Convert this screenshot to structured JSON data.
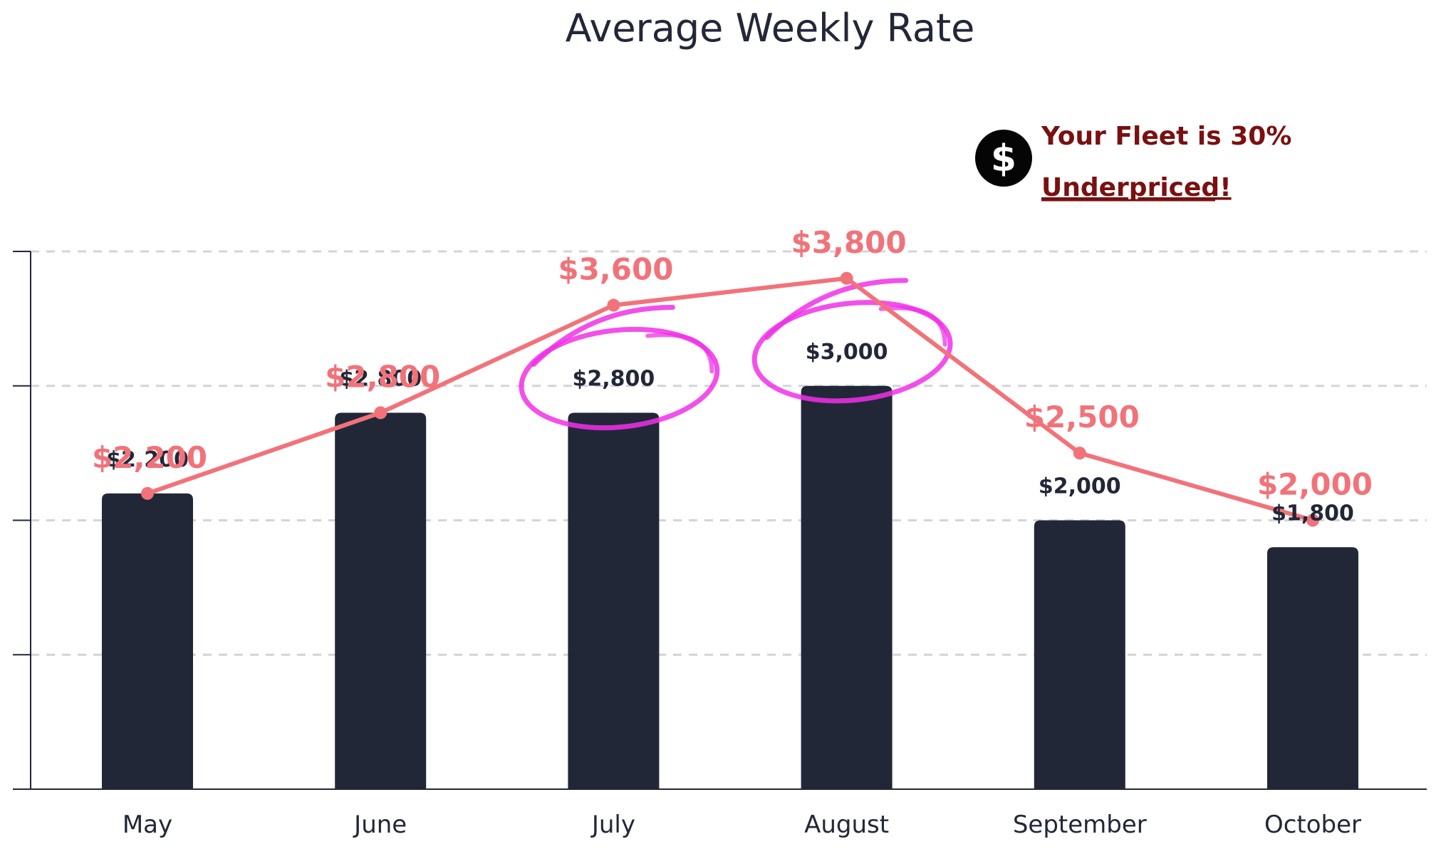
{
  "chart_data": {
    "type": "bar",
    "title": "Average Weekly Rate",
    "categories": [
      "May",
      "June",
      "July",
      "August",
      "September",
      "October"
    ],
    "series": [
      {
        "type": "bar",
        "values": [
          2200,
          2800,
          2800,
          3000,
          2000,
          1800
        ],
        "labels": [
          "$2,200",
          "$2,800",
          "$2,800",
          "$3,000",
          "$2,000",
          "$1,800"
        ],
        "color": "#222738"
      },
      {
        "type": "line",
        "values": [
          2200,
          2800,
          3600,
          3800,
          2500,
          2000
        ],
        "labels": [
          "$2,200",
          "$2,800",
          "$3,600",
          "$3,800",
          "$2,500",
          "$2,000"
        ],
        "color": "#f2727a"
      }
    ],
    "ylim": [
      0,
      4000
    ],
    "grid": true,
    "highlighted_categories": [
      "July",
      "August"
    ],
    "highlight_color": "#f030e8"
  },
  "callout": {
    "line1": "Your Fleet is 30%",
    "line2": "Underpriced!",
    "icon": "dollar-icon",
    "icon_glyph": "$",
    "color": "#7a1010"
  }
}
